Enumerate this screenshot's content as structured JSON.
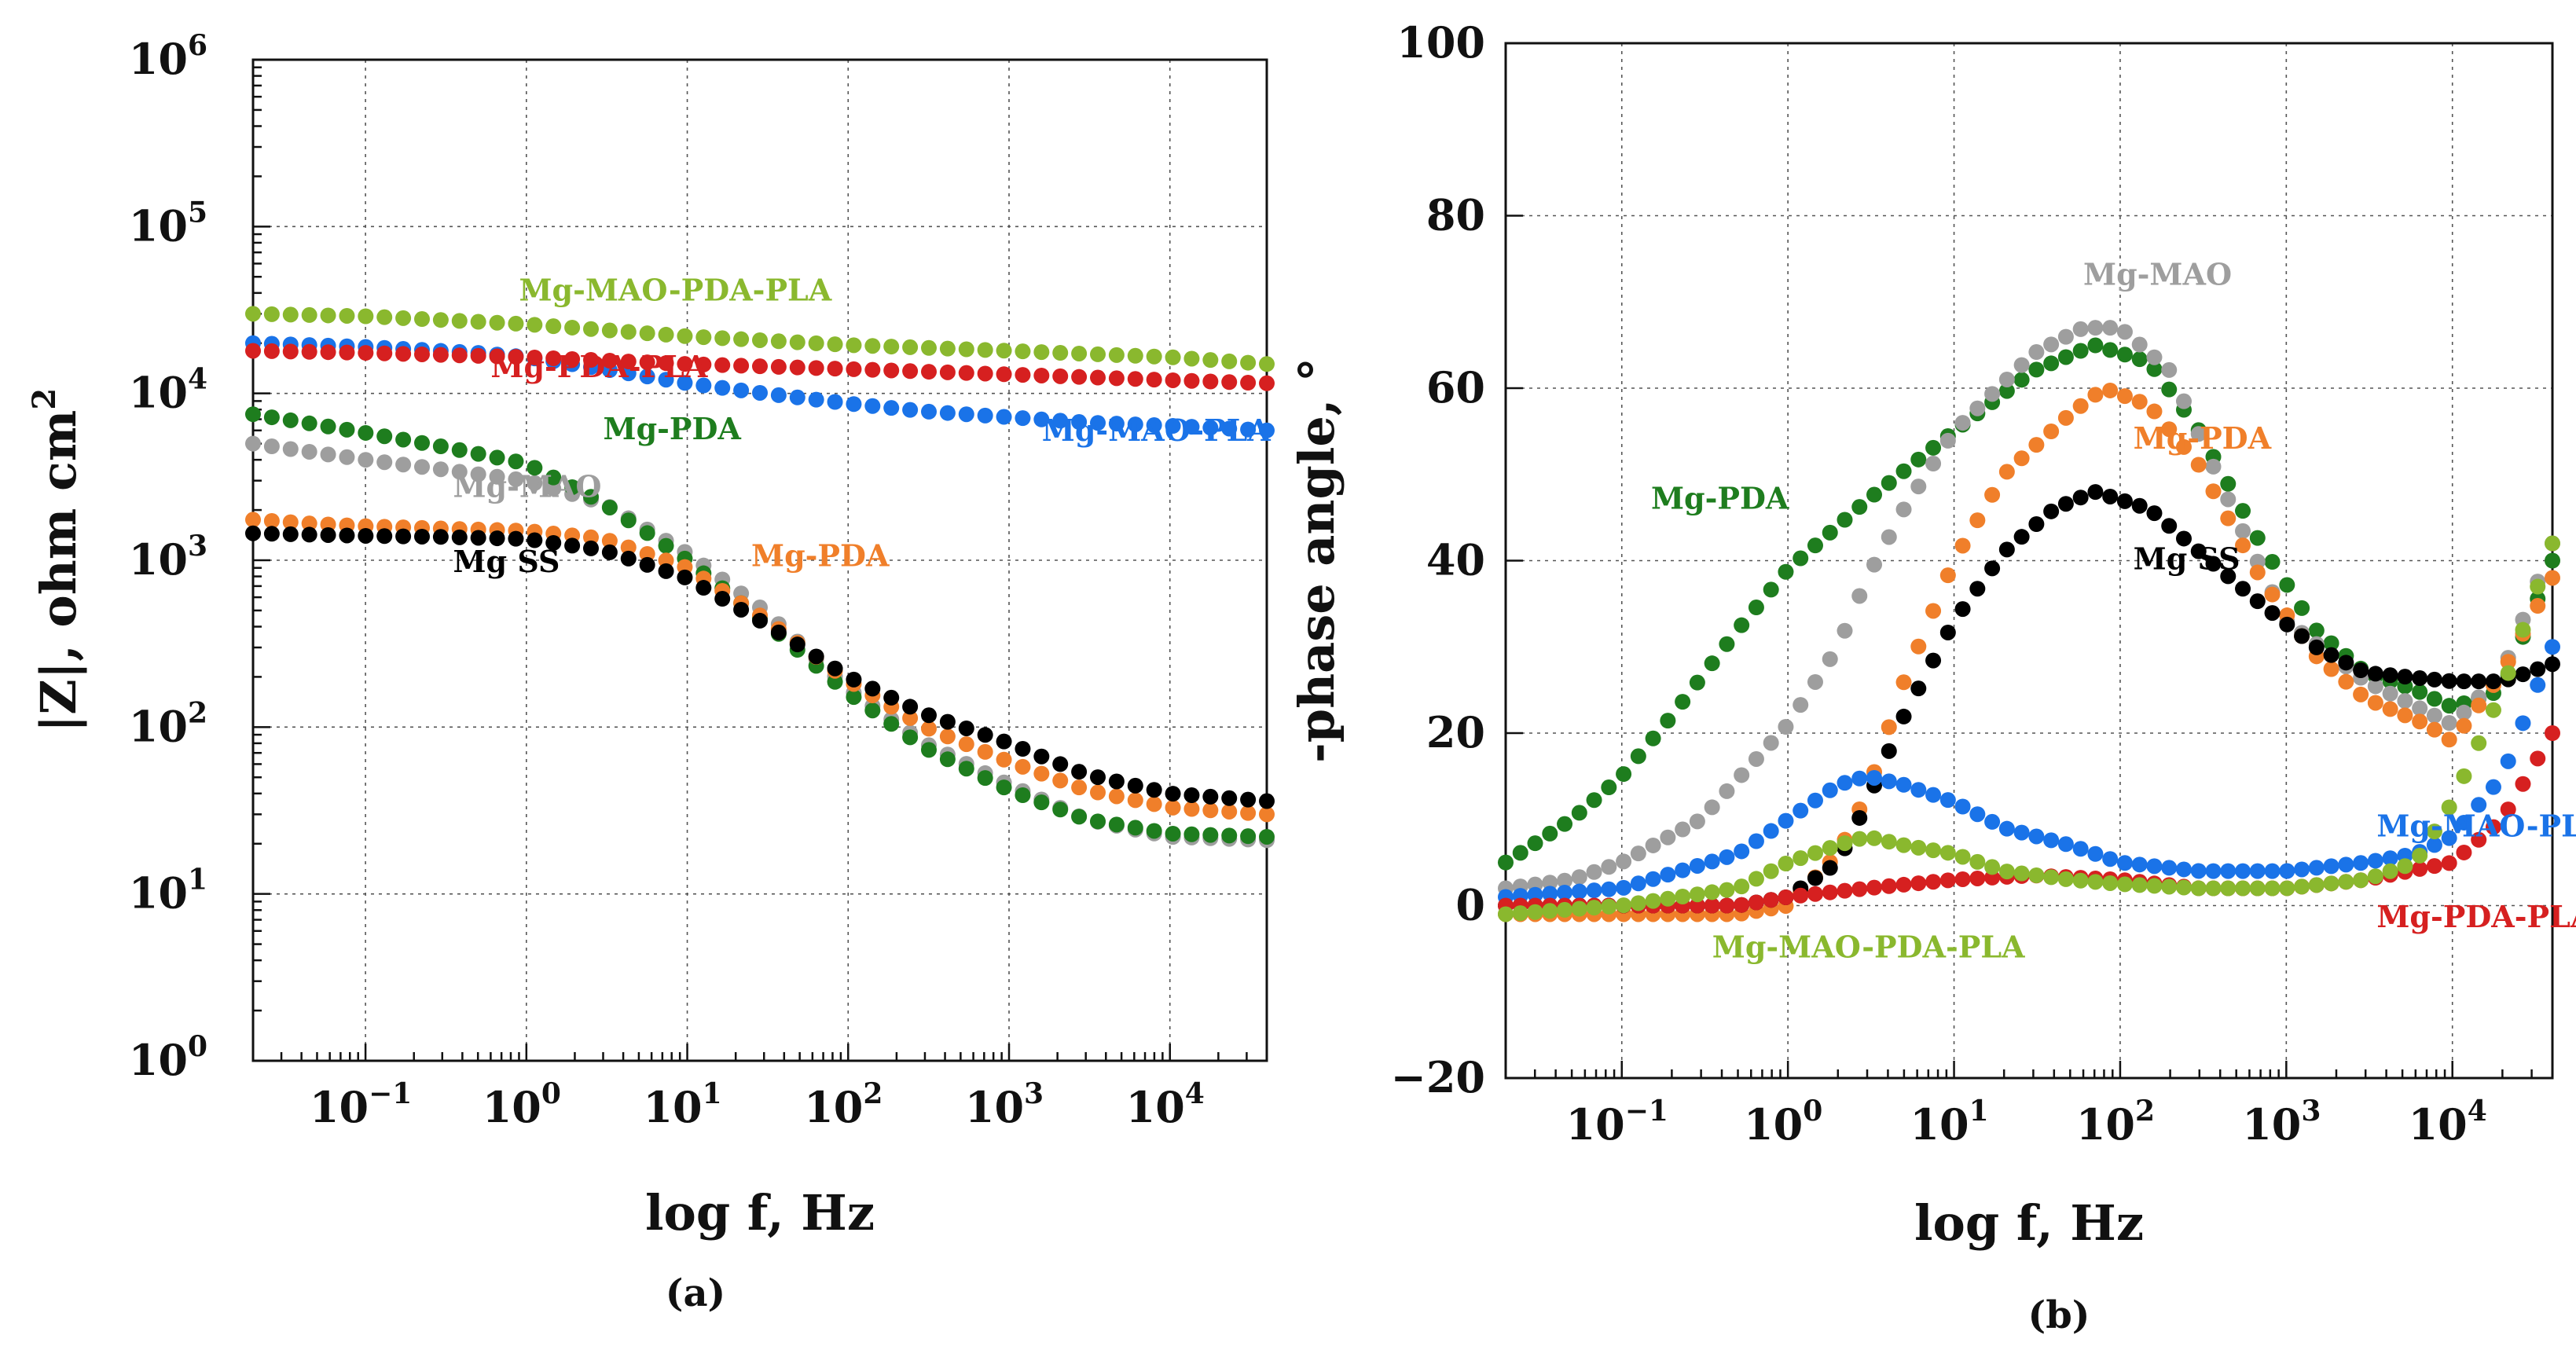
{
  "figure": {
    "panel_a_label": "(a)",
    "panel_b_label": "(b)"
  },
  "chart_data": [
    {
      "id": "a",
      "type": "scatter",
      "title": "",
      "xlabel": "log f, Hz",
      "ylabel": "|Z|, ohm cm",
      "ylabel_sup": "2",
      "xscale": "log",
      "yscale": "log",
      "xlim": [
        0.02,
        40000
      ],
      "ylim": [
        1,
        1000000
      ],
      "grid": true,
      "xticks": [
        {
          "value": 0.1,
          "base": "10",
          "exp": "−1"
        },
        {
          "value": 1,
          "base": "10",
          "exp": "0"
        },
        {
          "value": 10,
          "base": "10",
          "exp": "1"
        },
        {
          "value": 100,
          "base": "10",
          "exp": "2"
        },
        {
          "value": 1000,
          "base": "10",
          "exp": "3"
        },
        {
          "value": 10000,
          "base": "10",
          "exp": "4"
        }
      ],
      "yticks": [
        {
          "value": 1,
          "base": "10",
          "exp": "0"
        },
        {
          "value": 10,
          "base": "10",
          "exp": "1"
        },
        {
          "value": 100,
          "base": "10",
          "exp": "2"
        },
        {
          "value": 1000,
          "base": "10",
          "exp": "3"
        },
        {
          "value": 10000,
          "base": "10",
          "exp": "4"
        },
        {
          "value": 100000,
          "base": "10",
          "exp": "5"
        },
        {
          "value": 1000000,
          "base": "10",
          "exp": "6"
        }
      ],
      "series": [
        {
          "name": "Mg-MAO",
          "color": "#9e9e9e",
          "label_at": [
            0.35,
            2400
          ],
          "points": [
            [
              0.02,
              5000
            ],
            [
              0.05,
              4400
            ],
            [
              0.1,
              4000
            ],
            [
              0.3,
              3500
            ],
            [
              1,
              3000
            ],
            [
              3,
              2200
            ],
            [
              10,
              1100
            ],
            [
              30,
              500
            ],
            [
              100,
              170
            ],
            [
              300,
              80
            ],
            [
              1000,
              45
            ],
            [
              3000,
              28
            ],
            [
              10000,
              22
            ],
            [
              40000,
              21
            ]
          ]
        },
        {
          "name": "Mg-PDA",
          "color": "#1e7d1e",
          "label_at": [
            3,
            5300
          ],
          "points": [
            [
              0.02,
              7500
            ],
            [
              0.05,
              6500
            ],
            [
              0.1,
              5800
            ],
            [
              0.3,
              4800
            ],
            [
              1,
              3800
            ],
            [
              3,
              2200
            ],
            [
              10,
              1000
            ],
            [
              30,
              430
            ],
            [
              100,
              160
            ],
            [
              300,
              75
            ],
            [
              1000,
              42
            ],
            [
              3000,
              28
            ],
            [
              10000,
              23
            ],
            [
              40000,
              22
            ]
          ]
        },
        {
          "name": "Mg-PDA",
          "color": "#f07f2a",
          "label_at": [
            25,
            920
          ],
          "points": [
            [
              0.02,
              1750
            ],
            [
              0.05,
              1650
            ],
            [
              0.1,
              1600
            ],
            [
              0.3,
              1550
            ],
            [
              1,
              1500
            ],
            [
              3,
              1350
            ],
            [
              10,
              900
            ],
            [
              30,
              450
            ],
            [
              100,
              190
            ],
            [
              300,
              100
            ],
            [
              1000,
              62
            ],
            [
              3000,
              42
            ],
            [
              10000,
              33
            ],
            [
              40000,
              30
            ]
          ]
        },
        {
          "name": "Mg SS",
          "color": "#000000",
          "label_at": [
            0.35,
            850
          ],
          "points": [
            [
              0.02,
              1450
            ],
            [
              0.05,
              1420
            ],
            [
              0.1,
              1400
            ],
            [
              0.3,
              1380
            ],
            [
              1,
              1340
            ],
            [
              3,
              1150
            ],
            [
              10,
              780
            ],
            [
              30,
              420
            ],
            [
              100,
              200
            ],
            [
              300,
              120
            ],
            [
              1000,
              80
            ],
            [
              3000,
              52
            ],
            [
              10000,
              40
            ],
            [
              40000,
              36
            ]
          ]
        },
        {
          "name": "Mg-MAO-PLA",
          "color": "#1a73e8",
          "label_at": [
            1600,
            5200
          ],
          "points": [
            [
              0.02,
              20000
            ],
            [
              0.1,
              19000
            ],
            [
              0.5,
              17500
            ],
            [
              1,
              16500
            ],
            [
              3,
              14000
            ],
            [
              10,
              11500
            ],
            [
              30,
              10000
            ],
            [
              100,
              8700
            ],
            [
              300,
              7800
            ],
            [
              1000,
              7200
            ],
            [
              3000,
              6700
            ],
            [
              10000,
              6400
            ],
            [
              40000,
              6000
            ]
          ]
        },
        {
          "name": "Mg-PDA-PLA",
          "color": "#d62020",
          "label_at": [
            0.6,
            12500
          ],
          "points": [
            [
              0.02,
              18000
            ],
            [
              0.1,
              17500
            ],
            [
              1,
              16500
            ],
            [
              10,
              15000
            ],
            [
              100,
              14000
            ],
            [
              1000,
              13000
            ],
            [
              10000,
              12000
            ],
            [
              40000,
              11500
            ]
          ]
        },
        {
          "name": "Mg-MAO-PDA-PLA",
          "color": "#8ab82e",
          "label_at": [
            0.9,
            36000
          ],
          "points": [
            [
              0.02,
              30000
            ],
            [
              0.1,
              29000
            ],
            [
              1,
              26000
            ],
            [
              10,
              22000
            ],
            [
              100,
              19500
            ],
            [
              1000,
              18000
            ],
            [
              10000,
              16500
            ],
            [
              40000,
              15000
            ]
          ]
        }
      ]
    },
    {
      "id": "b",
      "type": "scatter",
      "title": "",
      "xlabel": "log f, Hz",
      "ylabel": "-phase angle, °",
      "xscale": "log",
      "yscale": "linear",
      "xlim": [
        0.02,
        40000
      ],
      "ylim": [
        -20,
        100
      ],
      "grid": true,
      "xticks": [
        {
          "value": 0.1,
          "base": "10",
          "exp": "−1"
        },
        {
          "value": 1,
          "base": "10",
          "exp": "0"
        },
        {
          "value": 10,
          "base": "10",
          "exp": "1"
        },
        {
          "value": 100,
          "base": "10",
          "exp": "2"
        },
        {
          "value": 1000,
          "base": "10",
          "exp": "3"
        },
        {
          "value": 10000,
          "base": "10",
          "exp": "4"
        }
      ],
      "yticks": [
        {
          "value": -20,
          "text": "−20"
        },
        {
          "value": 0,
          "text": "0"
        },
        {
          "value": 20,
          "text": "20"
        },
        {
          "value": 40,
          "text": "40"
        },
        {
          "value": 60,
          "text": "60"
        },
        {
          "value": 80,
          "text": "80"
        },
        {
          "value": 100,
          "text": "100"
        }
      ],
      "series": [
        {
          "name": "Mg-PDA",
          "color": "#1e7d1e",
          "label_at": [
            0.15,
            46
          ],
          "points": [
            [
              0.02,
              5
            ],
            [
              0.05,
              10
            ],
            [
              0.1,
              15
            ],
            [
              0.2,
              22
            ],
            [
              0.5,
              32
            ],
            [
              1,
              39
            ],
            [
              3,
              47
            ],
            [
              10,
              55
            ],
            [
              30,
              62
            ],
            [
              70,
              65
            ],
            [
              150,
              63
            ],
            [
              300,
              55
            ],
            [
              700,
              42
            ],
            [
              1500,
              32
            ],
            [
              3000,
              27
            ],
            [
              6000,
              25
            ],
            [
              10000,
              23
            ],
            [
              20000,
              25
            ],
            [
              40000,
              40
            ]
          ]
        },
        {
          "name": "Mg-MAO",
          "color": "#9e9e9e",
          "label_at": [
            60,
            72
          ],
          "points": [
            [
              0.02,
              2
            ],
            [
              0.05,
              3
            ],
            [
              0.1,
              5
            ],
            [
              0.3,
              10
            ],
            [
              1,
              21
            ],
            [
              2,
              30
            ],
            [
              3,
              38
            ],
            [
              5,
              46
            ],
            [
              10,
              55
            ],
            [
              30,
              64
            ],
            [
              60,
              67
            ],
            [
              100,
              67
            ],
            [
              200,
              62
            ],
            [
              500,
              45
            ],
            [
              1000,
              33
            ],
            [
              3000,
              26
            ],
            [
              10000,
              21
            ],
            [
              20000,
              27
            ],
            [
              40000,
              42
            ]
          ]
        },
        {
          "name": "Mg-PDA",
          "color": "#f07f2a",
          "label_at": [
            120,
            53
          ],
          "points": [
            [
              0.02,
              -1
            ],
            [
              0.1,
              -1
            ],
            [
              0.5,
              -1
            ],
            [
              1,
              0
            ],
            [
              2,
              6
            ],
            [
              3,
              13
            ],
            [
              5,
              26
            ],
            [
              10,
              40
            ],
            [
              20,
              50
            ],
            [
              50,
              57
            ],
            [
              80,
              60
            ],
            [
              150,
              58
            ],
            [
              300,
              51
            ],
            [
              700,
              38
            ],
            [
              1500,
              29
            ],
            [
              3000,
              24
            ],
            [
              7000,
              21
            ],
            [
              10000,
              19
            ],
            [
              20000,
              27
            ],
            [
              40000,
              38
            ]
          ]
        },
        {
          "name": "Mg SS",
          "color": "#000000",
          "label_at": [
            120,
            39
          ],
          "points": [
            [
              0.02,
              0
            ],
            [
              0.1,
              0
            ],
            [
              0.5,
              0
            ],
            [
              1,
              1
            ],
            [
              2,
              5
            ],
            [
              3,
              12
            ],
            [
              5,
              22
            ],
            [
              10,
              33
            ],
            [
              20,
              41
            ],
            [
              40,
              46
            ],
            [
              70,
              48
            ],
            [
              150,
              46
            ],
            [
              300,
              41
            ],
            [
              700,
              35
            ],
            [
              1500,
              30
            ],
            [
              3000,
              27
            ],
            [
              10000,
              26
            ],
            [
              20000,
              26
            ],
            [
              40000,
              28
            ]
          ]
        },
        {
          "name": "Mg-MAO-PLA",
          "color": "#1a73e8",
          "label_at": [
            3500,
            8
          ],
          "points": [
            [
              0.02,
              1
            ],
            [
              0.1,
              2
            ],
            [
              0.5,
              6
            ],
            [
              1,
              10
            ],
            [
              2,
              14
            ],
            [
              3,
              15
            ],
            [
              5,
              14
            ],
            [
              10,
              12
            ],
            [
              20,
              9
            ],
            [
              50,
              7
            ],
            [
              100,
              5
            ],
            [
              300,
              4
            ],
            [
              1000,
              4
            ],
            [
              3000,
              5
            ],
            [
              6000,
              6
            ],
            [
              10000,
              8
            ],
            [
              20000,
              15
            ],
            [
              40000,
              30
            ]
          ]
        },
        {
          "name": "Mg-PDA-PLA",
          "color": "#d62020",
          "label_at": [
            3500,
            -2.5
          ],
          "points": [
            [
              0.02,
              0
            ],
            [
              0.1,
              0
            ],
            [
              0.5,
              0
            ],
            [
              1,
              1
            ],
            [
              3,
              2
            ],
            [
              10,
              3
            ],
            [
              30,
              3.5
            ],
            [
              100,
              3
            ],
            [
              300,
              2
            ],
            [
              1000,
              2
            ],
            [
              3000,
              3
            ],
            [
              10000,
              5
            ],
            [
              20000,
              10
            ],
            [
              40000,
              20
            ]
          ]
        },
        {
          "name": "Mg-MAO-PDA-PLA",
          "color": "#8ab82e",
          "label_at": [
            0.35,
            -6
          ],
          "points": [
            [
              0.02,
              -1
            ],
            [
              0.1,
              0
            ],
            [
              0.5,
              2
            ],
            [
              1,
              5
            ],
            [
              2,
              7
            ],
            [
              3,
              8
            ],
            [
              5,
              7
            ],
            [
              10,
              6
            ],
            [
              20,
              4
            ],
            [
              50,
              3
            ],
            [
              100,
              2.5
            ],
            [
              300,
              2
            ],
            [
              1000,
              2
            ],
            [
              3000,
              3
            ],
            [
              6000,
              5
            ],
            [
              10000,
              12
            ],
            [
              20000,
              25
            ],
            [
              40000,
              42
            ]
          ]
        }
      ]
    }
  ]
}
